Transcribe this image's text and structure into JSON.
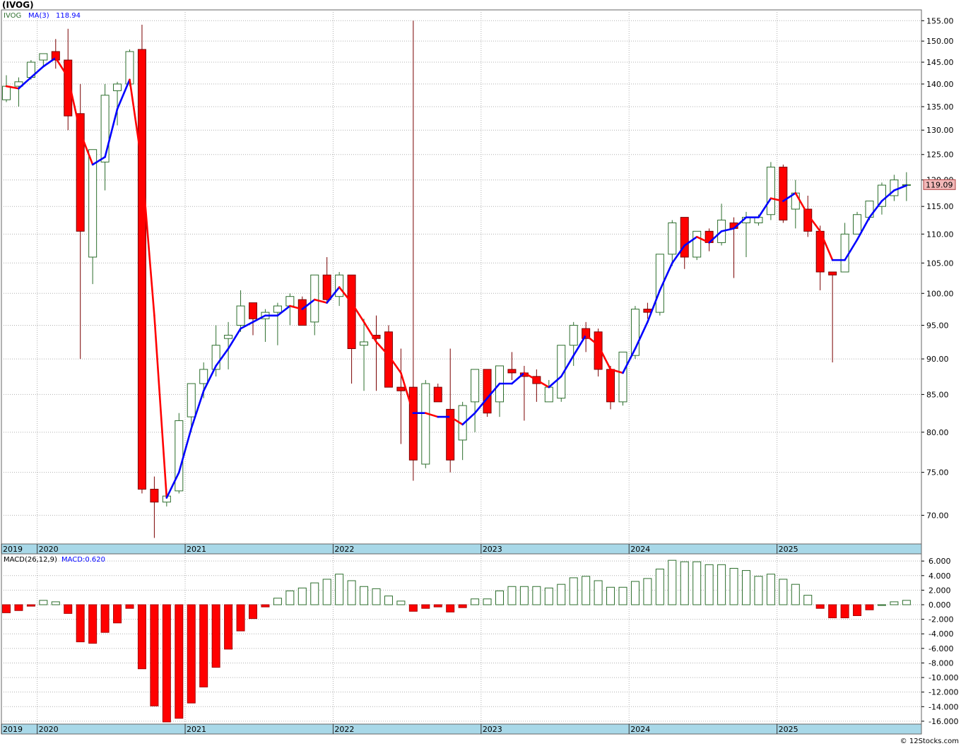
{
  "chart_data": [
    {
      "type": "candlestick",
      "title": "(IVOG)",
      "symbol_label": "IVOG",
      "ma_label": "MA(3)",
      "ma_value": "118.94",
      "last_price_label": "119.09",
      "y_scale": "log",
      "ylim": [
        67,
        157
      ],
      "y_ticks": [
        "155.00",
        "150.00",
        "145.00",
        "140.00",
        "135.00",
        "130.00",
        "125.00",
        "120.00",
        "115.00",
        "110.00",
        "105.00",
        "100.00",
        "95.00",
        "90.00",
        "85.00",
        "80.00",
        "75.00",
        "70.00"
      ],
      "x_tick_labels": [
        "2019",
        "2020",
        "2021",
        "2022",
        "2023",
        "2024",
        "2025"
      ],
      "grid": true,
      "colors": {
        "up": "#ffffff",
        "up_stroke": "#2d6e2d",
        "down": "#ff0000",
        "down_stroke": "#7a0000",
        "ma_up": "#0000ff",
        "ma_down": "#ff0000"
      },
      "candles": [
        [
          "2019-10",
          136.5,
          142.0,
          136.0,
          139.5
        ],
        [
          "2019-11",
          139.5,
          141.5,
          135.0,
          140.5
        ],
        [
          "2019-12",
          141.5,
          145.5,
          141.0,
          145.0
        ],
        [
          "2020-01",
          145.5,
          147.0,
          144.0,
          147.0
        ],
        [
          "2020-02",
          147.5,
          150.5,
          143.5,
          145.5
        ],
        [
          "2020-03",
          145.5,
          153.0,
          130.0,
          133.0
        ],
        [
          "2020-04",
          133.5,
          140.0,
          90.0,
          110.5
        ],
        [
          "2020-05",
          106.0,
          126.0,
          101.5,
          126.0
        ],
        [
          "2020-06",
          123.5,
          140.0,
          118.0,
          137.5
        ],
        [
          "2020-07",
          138.5,
          140.5,
          131.0,
          140.0
        ],
        [
          "2020-08",
          140.0,
          148.0,
          139.5,
          147.5
        ],
        [
          "2020-09",
          148.0,
          154.0,
          72.5,
          73.0
        ],
        [
          "2020-10",
          73.0,
          74.5,
          67.5,
          71.5
        ],
        [
          "2020-11",
          71.5,
          73.0,
          71.0,
          72.2
        ],
        [
          "2020-12",
          72.8,
          82.5,
          72.5,
          81.5
        ],
        [
          "2021-01",
          82.0,
          86.5,
          80.0,
          86.5
        ],
        [
          "2021-02",
          86.5,
          89.5,
          84.5,
          88.5
        ],
        [
          "2021-03",
          88.5,
          95.0,
          87.5,
          92.0
        ],
        [
          "2021-04",
          93.0,
          95.5,
          88.5,
          93.5
        ],
        [
          "2021-05",
          95.0,
          100.5,
          94.0,
          98.0
        ],
        [
          "2021-06",
          98.5,
          98.5,
          93.5,
          96.0
        ],
        [
          "2021-07",
          96.0,
          97.5,
          92.5,
          97.0
        ],
        [
          "2021-08",
          97.0,
          98.5,
          92.0,
          98.0
        ],
        [
          "2021-09",
          98.0,
          100.0,
          95.0,
          99.5
        ],
        [
          "2021-10",
          99.0,
          99.5,
          95.0,
          95.0
        ],
        [
          "2021-11",
          95.5,
          103.0,
          93.5,
          103.0
        ],
        [
          "2021-12",
          103.0,
          106.0,
          98.5,
          99.0
        ],
        [
          "2022-01",
          99.5,
          103.5,
          98.0,
          103.0
        ],
        [
          "2022-02",
          103.0,
          103.0,
          86.5,
          91.5
        ],
        [
          "2022-03",
          92.0,
          96.0,
          85.5,
          92.5
        ],
        [
          "2022-04",
          93.5,
          96.5,
          85.5,
          93.0
        ],
        [
          "2022-05",
          94.0,
          95.0,
          86.0,
          86.0
        ],
        [
          "2022-06",
          86.0,
          91.5,
          78.5,
          85.5
        ],
        [
          "2022-07",
          86.0,
          155.0,
          74.0,
          76.5
        ],
        [
          "2022-08",
          76.0,
          87.0,
          75.5,
          86.5
        ],
        [
          "2022-09",
          86.0,
          86.5,
          84.0,
          84.0
        ],
        [
          "2022-10",
          83.0,
          91.5,
          75.0,
          76.5
        ],
        [
          "2022-11",
          79.0,
          84.0,
          76.5,
          83.5
        ],
        [
          "2022-12",
          84.0,
          88.5,
          80.0,
          88.5
        ],
        [
          "2023-01",
          88.5,
          88.5,
          82.0,
          82.5
        ],
        [
          "2023-02",
          84.0,
          89.0,
          82.0,
          89.0
        ],
        [
          "2023-03",
          88.5,
          91.0,
          87.0,
          88.0
        ],
        [
          "2023-04",
          88.0,
          89.0,
          81.5,
          87.5
        ],
        [
          "2023-05",
          87.5,
          88.5,
          84.0,
          86.5
        ],
        [
          "2023-06",
          84.0,
          87.0,
          84.0,
          86.0
        ],
        [
          "2023-07",
          84.5,
          92.0,
          84.0,
          92.0
        ],
        [
          "2023-08",
          92.0,
          95.5,
          89.0,
          95.0
        ],
        [
          "2023-09",
          94.5,
          95.5,
          91.0,
          93.0
        ],
        [
          "2023-10",
          94.0,
          94.5,
          87.5,
          88.5
        ],
        [
          "2023-11",
          88.5,
          89.0,
          83.0,
          84.0
        ],
        [
          "2023-12",
          84.0,
          91.0,
          83.5,
          91.0
        ],
        [
          "2024-01",
          90.5,
          98.0,
          90.0,
          97.5
        ],
        [
          "2024-02",
          97.5,
          98.5,
          96.0,
          97.0
        ],
        [
          "2024-03",
          97.0,
          106.5,
          96.5,
          106.5
        ],
        [
          "2024-04",
          106.5,
          112.5,
          104.5,
          112.0
        ],
        [
          "2024-05",
          113.0,
          113.0,
          104.0,
          106.0
        ],
        [
          "2024-06",
          106.0,
          110.5,
          105.5,
          110.5
        ],
        [
          "2024-07",
          110.5,
          111.0,
          107.0,
          108.5
        ],
        [
          "2024-08",
          108.5,
          115.5,
          108.0,
          112.5
        ],
        [
          "2024-09",
          112.0,
          113.0,
          102.5,
          111.0
        ],
        [
          "2024-10",
          112.0,
          114.0,
          106.0,
          113.0
        ],
        [
          "2024-11",
          112.0,
          113.5,
          111.5,
          113.0
        ],
        [
          "2024-12",
          113.5,
          123.5,
          112.5,
          122.5
        ],
        [
          "2025-01",
          122.5,
          123.0,
          112.0,
          112.5
        ],
        [
          "2025-02",
          114.5,
          120.0,
          111.0,
          117.5
        ],
        [
          "2025-03",
          114.5,
          117.0,
          109.5,
          110.5
        ],
        [
          "2025-04",
          110.5,
          111.5,
          100.5,
          103.5
        ],
        [
          "2025-05",
          103.5,
          103.5,
          89.5,
          103.0
        ],
        [
          "2025-06",
          103.5,
          112.0,
          103.5,
          110.0
        ],
        [
          "2025-07",
          110.0,
          114.0,
          110.0,
          113.5
        ],
        [
          "2025-08",
          113.0,
          115.5,
          112.5,
          116.0
        ],
        [
          "2025-09",
          115.0,
          119.5,
          113.5,
          119.0
        ],
        [
          "2025-10",
          117.0,
          121.0,
          116.0,
          120.0
        ],
        [
          "2025-11",
          119.0,
          121.5,
          116.0,
          119.1
        ]
      ],
      "ma": [
        [
          "2019-10",
          139.5
        ],
        [
          "2019-11",
          139.0
        ],
        [
          "2019-12",
          141.5
        ],
        [
          "2020-01",
          144.0
        ],
        [
          "2020-02",
          146.0
        ],
        [
          "2020-03",
          141.5
        ],
        [
          "2020-04",
          129.5
        ],
        [
          "2020-05",
          123.0
        ],
        [
          "2020-06",
          124.5
        ],
        [
          "2020-07",
          134.5
        ],
        [
          "2020-08",
          141.0
        ],
        [
          "2020-09",
          123.0
        ],
        [
          "2020-10",
          96.5
        ],
        [
          "2020-11",
          72.0
        ],
        [
          "2020-12",
          75.0
        ],
        [
          "2021-01",
          80.5
        ],
        [
          "2021-02",
          85.5
        ],
        [
          "2021-03",
          89.0
        ],
        [
          "2021-04",
          91.5
        ],
        [
          "2021-05",
          94.5
        ],
        [
          "2021-06",
          95.5
        ],
        [
          "2021-07",
          96.5
        ],
        [
          "2021-08",
          96.5
        ],
        [
          "2021-09",
          98.0
        ],
        [
          "2021-10",
          97.5
        ],
        [
          "2021-11",
          99.0
        ],
        [
          "2021-12",
          98.5
        ],
        [
          "2022-01",
          101.0
        ],
        [
          "2022-02",
          98.5
        ],
        [
          "2022-03",
          95.5
        ],
        [
          "2022-04",
          92.5
        ],
        [
          "2022-05",
          90.5
        ],
        [
          "2022-06",
          88.0
        ],
        [
          "2022-07",
          82.5
        ],
        [
          "2022-08",
          82.5
        ],
        [
          "2022-09",
          82.0
        ],
        [
          "2022-10",
          82.0
        ],
        [
          "2022-11",
          81.0
        ],
        [
          "2022-12",
          82.5
        ],
        [
          "2023-01",
          84.5
        ],
        [
          "2023-02",
          86.5
        ],
        [
          "2023-03",
          86.5
        ],
        [
          "2023-04",
          88.0
        ],
        [
          "2023-05",
          87.0
        ],
        [
          "2023-06",
          86.0
        ],
        [
          "2023-07",
          87.5
        ],
        [
          "2023-08",
          90.5
        ],
        [
          "2023-09",
          93.5
        ],
        [
          "2023-10",
          92.0
        ],
        [
          "2023-11",
          88.5
        ],
        [
          "2023-12",
          88.0
        ],
        [
          "2024-01",
          91.5
        ],
        [
          "2024-02",
          95.5
        ],
        [
          "2024-03",
          100.5
        ],
        [
          "2024-04",
          105.0
        ],
        [
          "2024-05",
          108.0
        ],
        [
          "2024-06",
          109.5
        ],
        [
          "2024-07",
          108.5
        ],
        [
          "2024-08",
          110.5
        ],
        [
          "2024-09",
          111.0
        ],
        [
          "2024-10",
          113.0
        ],
        [
          "2024-11",
          113.0
        ],
        [
          "2024-12",
          116.5
        ],
        [
          "2025-01",
          116.0
        ],
        [
          "2025-02",
          117.5
        ],
        [
          "2025-03",
          113.5
        ],
        [
          "2025-04",
          110.5
        ],
        [
          "2025-05",
          105.5
        ],
        [
          "2025-06",
          105.5
        ],
        [
          "2025-07",
          109.0
        ],
        [
          "2025-08",
          113.0
        ],
        [
          "2025-09",
          116.0
        ],
        [
          "2025-10",
          118.0
        ],
        [
          "2025-11",
          118.94
        ]
      ]
    },
    {
      "type": "bar",
      "title": "MACD(26,12,9)",
      "value_label": "MACD:0.620",
      "ylim": [
        -16.3,
        6.6
      ],
      "y_ticks": [
        "6.000",
        "4.000",
        "2.000",
        "0.000",
        "-2.000",
        "-4.000",
        "-6.000",
        "-8.000",
        "-10.000",
        "-12.000",
        "-14.000",
        "-16.000"
      ],
      "x_tick_labels": [
        "2019",
        "2020",
        "2021",
        "2022",
        "2023",
        "2024",
        "2025"
      ],
      "grid": true,
      "colors": {
        "positive_stroke": "#2d6e2d",
        "negative": "#ff0000"
      },
      "x": [
        "2019-10",
        "2019-11",
        "2019-12",
        "2020-01",
        "2020-02",
        "2020-03",
        "2020-04",
        "2020-05",
        "2020-06",
        "2020-07",
        "2020-08",
        "2020-09",
        "2020-10",
        "2020-11",
        "2020-12",
        "2021-01",
        "2021-02",
        "2021-03",
        "2021-04",
        "2021-05",
        "2021-06",
        "2021-07",
        "2021-08",
        "2021-09",
        "2021-10",
        "2021-11",
        "2021-12",
        "2022-01",
        "2022-02",
        "2022-03",
        "2022-04",
        "2022-05",
        "2022-06",
        "2022-07",
        "2022-08",
        "2022-09",
        "2022-10",
        "2022-11",
        "2022-12",
        "2023-01",
        "2023-02",
        "2023-03",
        "2023-04",
        "2023-05",
        "2023-06",
        "2023-07",
        "2023-08",
        "2023-09",
        "2023-10",
        "2023-11",
        "2023-12",
        "2024-01",
        "2024-02",
        "2024-03",
        "2024-04",
        "2024-05",
        "2024-06",
        "2024-07",
        "2024-08",
        "2024-09",
        "2024-10",
        "2024-11",
        "2024-12",
        "2025-01",
        "2025-02",
        "2025-03",
        "2025-04",
        "2025-05",
        "2025-06",
        "2025-07",
        "2025-08",
        "2025-09",
        "2025-10",
        "2025-11"
      ],
      "values": [
        -1.1,
        -0.8,
        -0.2,
        0.6,
        0.4,
        -1.2,
        -5.1,
        -5.3,
        -3.8,
        -2.5,
        -0.5,
        -8.8,
        -13.9,
        -16.1,
        -15.6,
        -13.5,
        -11.3,
        -8.6,
        -6.1,
        -3.6,
        -1.9,
        -0.3,
        0.9,
        1.9,
        2.3,
        3.0,
        3.5,
        4.2,
        3.3,
        2.5,
        2.2,
        1.2,
        0.5,
        -0.9,
        -0.5,
        -0.3,
        -1.0,
        -0.4,
        0.8,
        0.8,
        1.9,
        2.5,
        2.5,
        2.5,
        2.3,
        2.8,
        3.7,
        3.9,
        3.3,
        2.4,
        2.4,
        3.2,
        3.6,
        4.9,
        6.1,
        5.9,
        5.9,
        5.5,
        5.5,
        5.0,
        4.7,
        3.9,
        4.2,
        3.5,
        2.8,
        1.3,
        -0.5,
        -1.8,
        -1.8,
        -1.5,
        -0.7,
        0.0,
        0.4,
        0.6
      ]
    }
  ],
  "footer": {
    "copyright": "© 12Stocks.com"
  }
}
